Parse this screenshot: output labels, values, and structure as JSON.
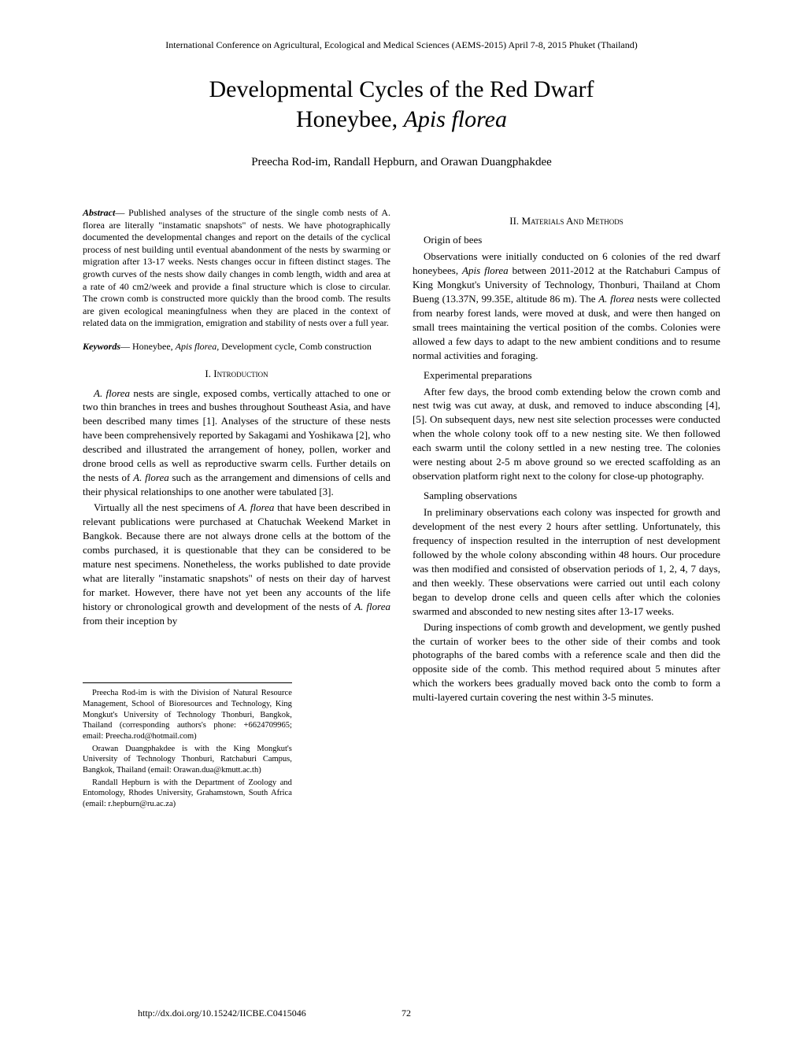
{
  "header": "International Conference on Agricultural, Ecological and Medical Sciences (AEMS-2015) April 7-8, 2015 Phuket (Thailand)",
  "title_line1": "Developmental Cycles of the Red Dwarf",
  "title_line2_a": "Honeybee, ",
  "title_line2_b": "Apis florea",
  "authors": "Preecha Rod-im, Randall Hepburn, and Orawan Duangphakdee",
  "abstract": {
    "lead": "Abstract",
    "text": "— Published analyses of the structure of the single comb nests of A. florea are literally \"instamatic snapshots\" of nests. We have photographically documented the developmental changes and report on the details of the cyclical process of nest building until eventual abandonment of the nests by swarming or migration after 13-17 weeks. Nests changes occur in fifteen distinct stages. The growth curves of the nests show daily changes in comb length, width and area at a rate of 40 cm2/week and provide a final structure which is close to circular. The crown comb is constructed more quickly than the brood comb. The results are given ecological meaningfulness when they are placed in the context of related data on the immigration, emigration and stability of nests over a full year."
  },
  "keywords": {
    "lead": "Keywords",
    "text_a": "— Honeybee, ",
    "text_b": "Apis florea,",
    "text_c": " Development cycle, Comb construction"
  },
  "sec_intro_num": "I. ",
  "sec_intro_word": "Introduction",
  "intro_p1_a": "A. florea",
  "intro_p1_b": " nests are single, exposed combs, vertically attached to one or two  thin branches in trees and bushes throughout Southeast Asia, and have been described many times [1]. Analyses of the structure of these nests have been comprehensively reported by Sakagami and Yoshikawa [2], who described and illustrated the arrangement of honey, pollen, worker and drone brood cells as well as reproductive swarm cells. Further details on the nests of ",
  "intro_p1_c": "A. florea",
  "intro_p1_d": " such as the arrangement and dimensions of cells and their physical relationships to one another were tabulated [3].",
  "intro_p2_a": "Virtually all the nest specimens of ",
  "intro_p2_b": "A. florea",
  "intro_p2_c": " that have been described in relevant publications were purchased at Chatuchak Weekend Market in Bangkok. Because there are not always drone cells at the bottom of the combs purchased, it is questionable that they can be considered to be mature nest specimens. Nonetheless, the works published to date provide what are literally \"instamatic snapshots\" of nests on their day of harvest for market. However, there have not yet been any accounts of the life history or chronological growth and development of the nests of ",
  "intro_p2_d": "A. florea",
  "intro_p2_e": " from their inception by",
  "affil1": "Preecha Rod-im is with the Division of Natural Resource Management, School of Bioresources and Technology, King Mongkut's University of Technology Thonburi, Bangkok, Thailand (corresponding authors's phone: +6624709965; email: Preecha.rod@hotmail.com)",
  "affil2": "Orawan Duangphakdee is with the King Mongkut's University of Technology Thonburi, Ratchaburi Campus, Bangkok,  Thailand (email: Orawan.dua@kmutt.ac.th)",
  "affil3": "Randall Hepburn is with the Department of Zoology and Entomology, Rhodes University, Grahamstown, South Africa (email: r.hepburn@ru.ac.za)",
  "sec_methods_num": "II. ",
  "sec_methods_word": "Materials And Methods",
  "sub_origin": "Origin of bees",
  "origin_p_a": "Observations were initially conducted on 6 colonies of the red dwarf honeybees, ",
  "origin_p_b": "Apis florea",
  "origin_p_c": " between 2011-2012 at the Ratchaburi Campus of King Mongkut's University of Technology, Thonburi, Thailand at Chom Bueng (13.37N, 99.35E, altitude 86 m). The ",
  "origin_p_d": "A. florea",
  "origin_p_e": " nests were collected from nearby forest lands, were moved at dusk, and were then hanged on small trees maintaining the vertical position of the combs. Colonies were allowed a few days to adapt to the new ambient conditions and to resume normal activities and foraging.",
  "sub_exp": "Experimental preparations",
  "exp_p": "After few days, the brood comb extending below the crown comb and nest twig was cut away, at dusk, and removed to induce absconding [4],[5]. On subsequent days, new nest site selection processes were conducted when the whole colony took off to a new nesting site. We then followed each swarm until the colony settled in a new nesting tree. The colonies were nesting about 2-5 m above ground so we erected scaffolding as an observation platform right next to the colony for close-up photography.",
  "sub_samp": "Sampling observations",
  "samp_p1": "In preliminary observations each colony was inspected for growth and development of the nest every 2 hours after settling. Unfortunately, this frequency of inspection resulted in the interruption of nest development followed by the whole colony absconding within 48 hours. Our procedure was then modified and consisted of observation periods of 1, 2, 4, 7 days, and then weekly. These observations were carried out until each colony began to develop drone cells and queen cells after which the colonies swarmed and absconded to new nesting sites after 13-17 weeks.",
  "samp_p2": "During inspections of comb growth and development, we gently pushed the curtain of worker bees to the other side of their combs and took photographs of the bared combs with a reference scale and then did the opposite side of the comb. This method required about 5 minutes after which the workers bees gradually moved back onto the comb to form a multi-layered curtain covering the nest within 3-5 minutes.",
  "doi": "http://dx.doi.org/10.15242/IICBE.C0415046",
  "page_num": "72"
}
